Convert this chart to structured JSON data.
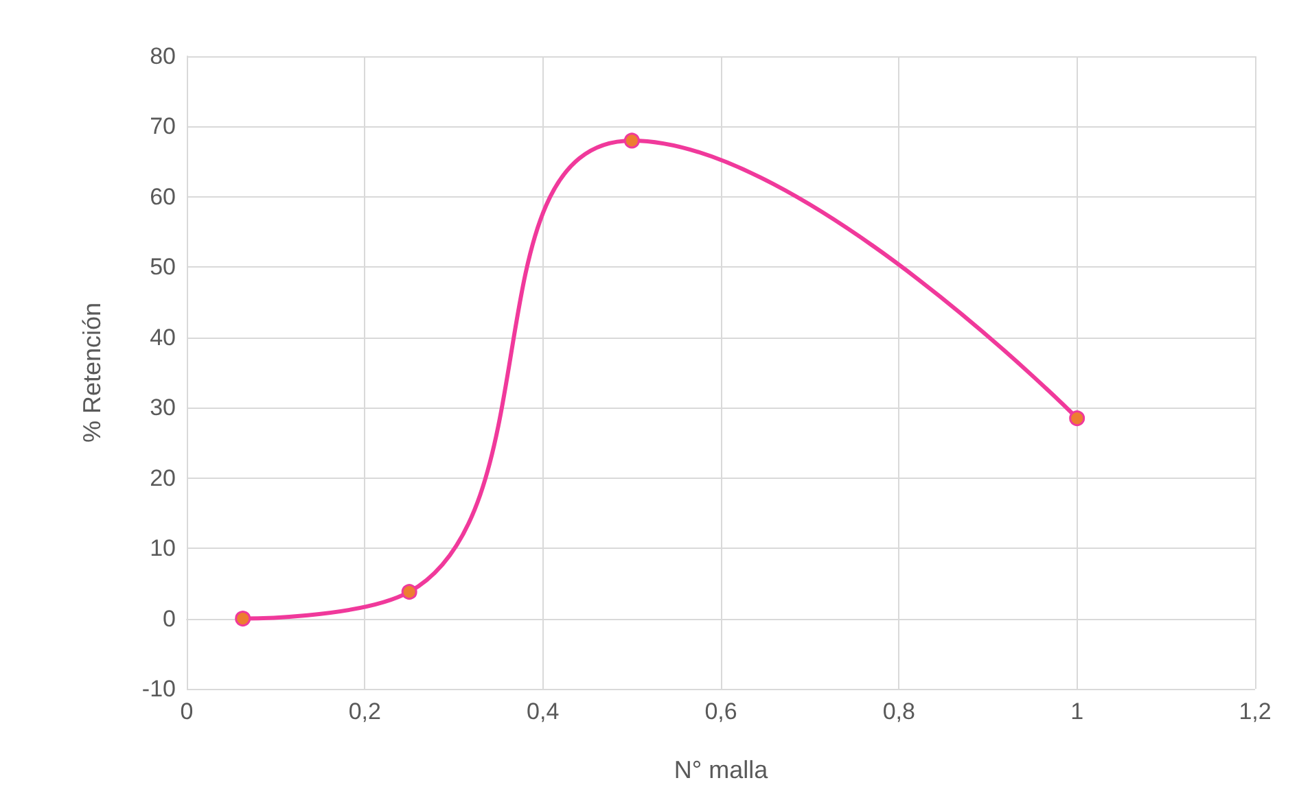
{
  "chart_data": {
    "type": "line",
    "xlabel": "N° malla",
    "ylabel": "% Retención",
    "x": [
      0.063,
      0.25,
      0.5,
      1
    ],
    "series": [
      {
        "color": "#f0399b",
        "values": [
          0,
          3.8,
          68,
          28.5
        ]
      }
    ],
    "xlim": [
      0,
      1.2
    ],
    "xticks": [
      0,
      {
        "value": 0.2,
        "label": "0,2"
      },
      {
        "value": 0.4,
        "label": "0,4"
      },
      {
        "value": 0.6,
        "label": "0,6"
      },
      {
        "value": 0.8,
        "label": "0,8"
      },
      1,
      {
        "value": 1.2,
        "label": "1,2"
      }
    ],
    "ylim": [
      -10,
      80
    ],
    "yticks": [
      -10,
      0,
      10,
      20,
      30,
      40,
      50,
      60,
      70,
      80
    ],
    "grid": true,
    "marker": "circle",
    "line_style": "solid"
  }
}
